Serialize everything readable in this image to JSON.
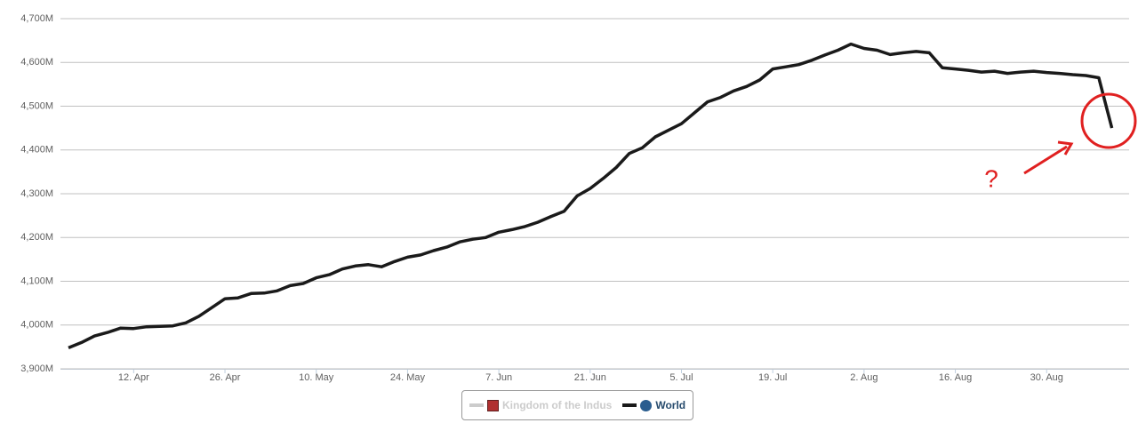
{
  "chart_data": {
    "type": "line",
    "categories": [
      null,
      null,
      null,
      null,
      null,
      "12. Apr",
      null,
      null,
      null,
      null,
      null,
      null,
      "26. Apr",
      null,
      null,
      null,
      null,
      null,
      null,
      "10. May",
      null,
      null,
      null,
      null,
      null,
      null,
      "24. May",
      null,
      null,
      null,
      null,
      null,
      null,
      "7. Jun",
      null,
      null,
      null,
      null,
      null,
      null,
      "21. Jun",
      null,
      null,
      null,
      null,
      null,
      null,
      "5. Jul",
      null,
      null,
      null,
      null,
      null,
      null,
      "19. Jul",
      null,
      null,
      null,
      null,
      null,
      null,
      "2. Aug",
      null,
      null,
      null,
      null,
      null,
      null,
      "16. Aug",
      null,
      null,
      null,
      null,
      null,
      null,
      "30. Aug",
      null,
      null,
      null,
      null,
      null
    ],
    "series": [
      {
        "name": "Kingdom of the Indus",
        "color": "#cccccc",
        "visible": false
      },
      {
        "name": "World",
        "color": "#1a1a1a",
        "visible": true,
        "values": [
          3948,
          3960,
          3975,
          3983,
          3993,
          3992,
          3996,
          3997,
          3998,
          4005,
          4020,
          4040,
          4060,
          4062,
          4072,
          4073,
          4078,
          4090,
          4095,
          4108,
          4115,
          4128,
          4135,
          4138,
          4133,
          4145,
          4155,
          4160,
          4170,
          4178,
          4190,
          4196,
          4200,
          4212,
          4218,
          4225,
          4235,
          4248,
          4260,
          4295,
          4312,
          4335,
          4360,
          4392,
          4405,
          4430,
          4445,
          4460,
          4485,
          4510,
          4520,
          4535,
          4545,
          4560,
          4585,
          4590,
          4595,
          4605,
          4617,
          4628,
          4642,
          4632,
          4628,
          4618,
          4622,
          4625,
          4622,
          4588,
          4585,
          4582,
          4578,
          4580,
          4575,
          4578,
          4580,
          4577,
          4575,
          4572,
          4570,
          4565,
          4450
        ]
      }
    ],
    "ylim": [
      3900,
      4700
    ],
    "yticks": [
      {
        "value": 3900,
        "label": "3,900M"
      },
      {
        "value": 4000,
        "label": "4,000M"
      },
      {
        "value": 4100,
        "label": "4,100M"
      },
      {
        "value": 4200,
        "label": "4,200M"
      },
      {
        "value": 4300,
        "label": "4,300M"
      },
      {
        "value": 4400,
        "label": "4,400M"
      },
      {
        "value": 4500,
        "label": "4,500M"
      },
      {
        "value": 4600,
        "label": "4,600M"
      },
      {
        "value": 4700,
        "label": "4,700M"
      }
    ],
    "grid": true,
    "annotation": "?"
  }
}
